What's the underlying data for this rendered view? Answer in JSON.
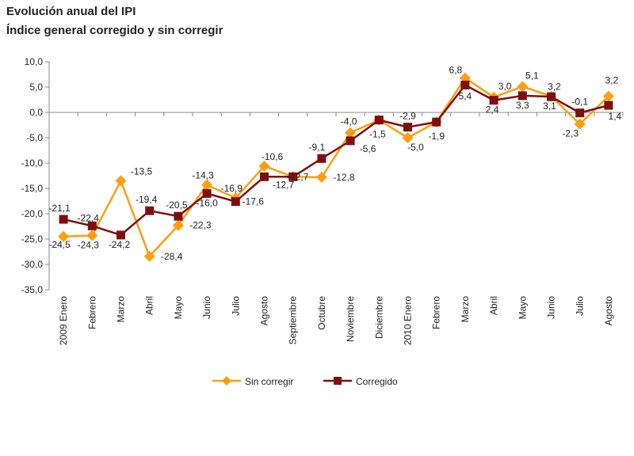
{
  "chart_data": {
    "type": "line",
    "title": "Evolución anual del IPI",
    "subtitle": "Índice general corregido y sin corregir",
    "categories": [
      "2009 Enero",
      "Febrero",
      "Marzo",
      "Abril",
      "Mayo",
      "Junio",
      "Julio",
      "Agosto",
      "Septiembre",
      "Octubre",
      "Noviembre",
      "Diciembre",
      "2010 Enero",
      "Febrero",
      "Marzo",
      "Abril",
      "Mayo",
      "Junio",
      "Julio",
      "Agosto"
    ],
    "ylim": [
      -35,
      10
    ],
    "yticks": [
      "10,0",
      "5,0",
      "0,0",
      "-5,0",
      "-10,0",
      "-15,0",
      "-20,0",
      "-25,0",
      "-30,0",
      "-35,0"
    ],
    "grid": false,
    "legend": "bottom",
    "series": [
      {
        "name": "Sin corregir",
        "color": "#FF9E0F",
        "marker": "diamond",
        "values": [
          -24.5,
          -24.3,
          -13.5,
          -28.4,
          -22.3,
          -14.3,
          -16.9,
          -10.6,
          -12.7,
          -12.8,
          -4.0,
          -1.5,
          -5.0,
          -1.9,
          6.8,
          3.0,
          5.1,
          3.2,
          -2.3,
          3.2
        ],
        "labels": [
          "-24,5",
          "-24,3",
          "-13,5",
          "-28,4",
          "-22,3",
          "-14,3",
          "-16,9",
          "-10,6",
          null,
          "-12,8",
          "-4,0",
          null,
          "-5,0",
          null,
          "6,8",
          "3,0",
          "5,1",
          "3,2",
          "-2,3",
          "3,2"
        ]
      },
      {
        "name": "Corregido",
        "color": "#7F0F0F",
        "marker": "square",
        "values": [
          -21.1,
          -22.4,
          -24.2,
          -19.4,
          -20.5,
          -16.0,
          -17.6,
          -12.7,
          -12.7,
          -9.1,
          -5.6,
          -1.5,
          -2.9,
          -1.9,
          5.4,
          2.4,
          3.3,
          3.1,
          -0.1,
          1.4
        ],
        "labels": [
          "-21,1",
          "-22,4",
          "-24,2",
          "-19,4",
          "-20,5",
          "-16,0",
          "-17,6",
          "-12,7",
          "-12,7",
          "-9,1",
          "-5,6",
          "-1,5",
          "-2,9",
          "-1,9",
          "5,4",
          "2,4",
          "3,3",
          "3,1",
          "-0,1",
          "1,4"
        ]
      }
    ]
  }
}
